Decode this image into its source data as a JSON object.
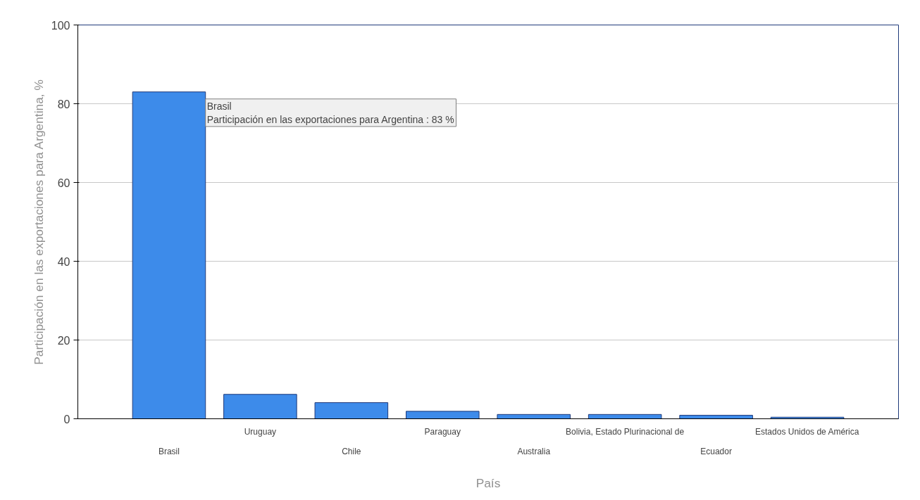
{
  "chart_data": {
    "type": "bar",
    "xlabel": "País",
    "ylabel": "Participación en las exportaciones para Argentina, %",
    "categories": [
      "Brasil",
      "Uruguay",
      "Chile",
      "Paraguay",
      "Australia",
      "Bolivia, Estado Plurinacional de",
      "Ecuador",
      "Estados Unidos de América"
    ],
    "values": [
      83,
      6.2,
      4.1,
      1.9,
      1.1,
      1.1,
      0.9,
      0.4
    ],
    "color": "#3d8bea",
    "ylim": [
      0,
      100
    ],
    "yticks": [
      0,
      20,
      40,
      60,
      80,
      100
    ],
    "grid": "y",
    "annotations": [
      "Brasil\nParticipación en las exportaciones para Argentina : 83 %"
    ]
  }
}
